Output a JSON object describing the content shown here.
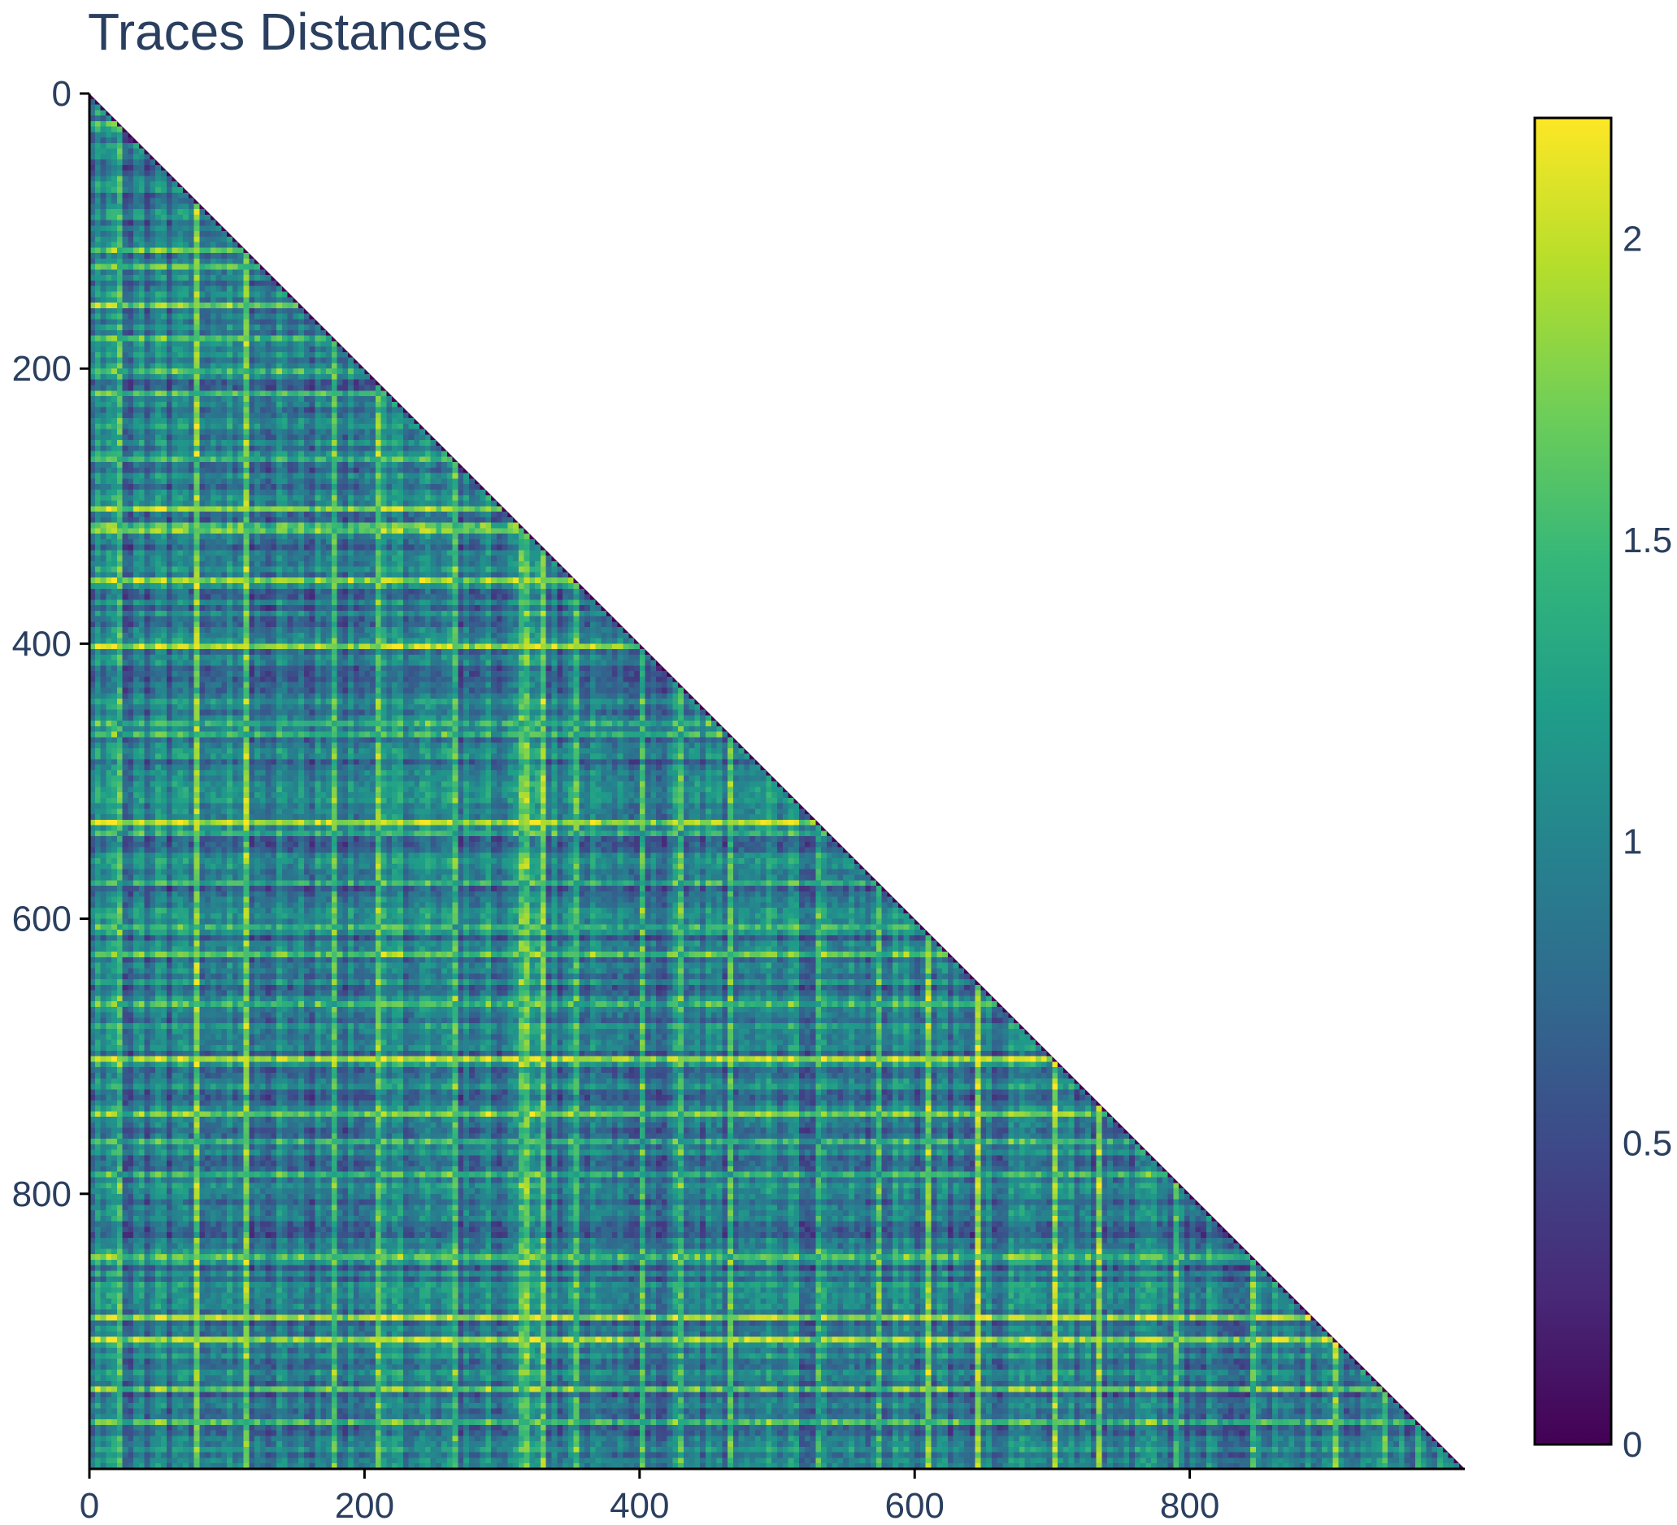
{
  "chart_data": {
    "type": "heatmap",
    "title": "Traces Distances",
    "xlabel": "",
    "ylabel": "",
    "matrix_size": 1000,
    "triangle": "lower",
    "xlim": [
      0,
      1000
    ],
    "ylim": [
      1000,
      0
    ],
    "x_ticks": [
      "0",
      "200",
      "400",
      "600",
      "800"
    ],
    "y_ticks": [
      "0",
      "200",
      "400",
      "600",
      "800"
    ],
    "colorscale": "viridis",
    "colorscale_stops": [
      "#440154",
      "#482878",
      "#3e4989",
      "#31688e",
      "#26828e",
      "#1f9e89",
      "#35b779",
      "#6ece58",
      "#b5de2b",
      "#fde725"
    ],
    "zlim": [
      0,
      2.2
    ],
    "colorbar_ticks": [
      "0",
      "0.5",
      "1",
      "1.5",
      "2"
    ],
    "highlight_rows": [
      20,
      113,
      127,
      155,
      178,
      200,
      218,
      265,
      300,
      313,
      317,
      355,
      400,
      458,
      465,
      530,
      536,
      575,
      605,
      625,
      660,
      700,
      740,
      760,
      785,
      845,
      890,
      905,
      940,
      965
    ],
    "highlight_cols": [
      20,
      78,
      113,
      178,
      210,
      265,
      313,
      317,
      330,
      355,
      400,
      430,
      465,
      530,
      575,
      610,
      645,
      700,
      735,
      790,
      845,
      905,
      940,
      965
    ],
    "grid": false,
    "legend": "none"
  }
}
